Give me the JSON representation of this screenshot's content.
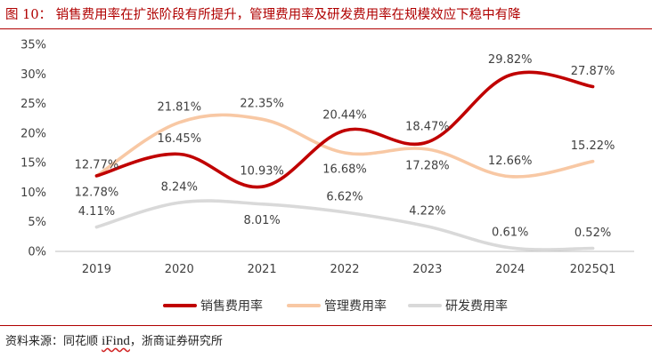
{
  "title": "图 10：  销售费用率在扩张阶段有所提升，管理费用率及研发费用率在规模效应下稳中有降",
  "source": {
    "prefix": "资料来源：同花顺 ",
    "ifind": "iFind",
    "suffix": "，浙商证券研究所"
  },
  "colors": {
    "title": "#b00000",
    "sales": "#c00000",
    "admin": "#f8c8a4",
    "rd": "#d9d9d9"
  },
  "chart_data": {
    "type": "line",
    "categories": [
      "2019",
      "2020",
      "2021",
      "2022",
      "2023",
      "2024",
      "2025Q1"
    ],
    "y_ticks": [
      "0%",
      "5%",
      "10%",
      "15%",
      "20%",
      "25%",
      "30%",
      "35%"
    ],
    "ylim": [
      0,
      35
    ],
    "grid": false,
    "legend_position": "bottom",
    "smooth": true,
    "series": [
      {
        "key": "sales",
        "name": "销售费用率",
        "values": [
          12.78,
          16.45,
          10.93,
          20.44,
          18.47,
          29.82,
          27.87
        ],
        "labels": [
          "12.78%",
          "16.45%",
          "10.93%",
          "20.44%",
          "18.47%",
          "29.82%",
          "27.87%"
        ]
      },
      {
        "key": "admin",
        "name": "管理费用率",
        "values": [
          12.77,
          21.81,
          22.35,
          16.68,
          17.28,
          12.66,
          15.22
        ],
        "labels": [
          "12.77%",
          "21.81%",
          "22.35%",
          "16.68%",
          "17.28%",
          "12.66%",
          "15.22%"
        ]
      },
      {
        "key": "rd",
        "name": "研发费用率",
        "values": [
          4.11,
          8.24,
          8.01,
          6.62,
          4.22,
          0.61,
          0.52
        ],
        "labels": [
          "4.11%",
          "8.24%",
          "8.01%",
          "6.62%",
          "4.22%",
          "0.61%",
          "0.52%"
        ]
      }
    ]
  }
}
